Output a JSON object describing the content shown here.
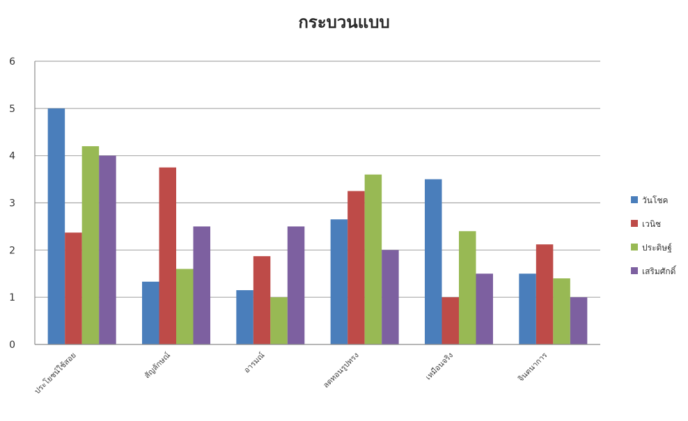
{
  "chart_data": {
    "type": "bar",
    "title": "กระบวนแบบ",
    "xlabel": "",
    "ylabel": "",
    "ylim": [
      0,
      6
    ],
    "yticks": [
      0,
      1,
      2,
      3,
      4,
      5,
      6
    ],
    "grid": true,
    "legend_position": "right",
    "categories": [
      "ประโยชน์ใช้สอย",
      "สัญลักษณ์",
      "อารมณ์",
      "ลดทอนรูปทรง",
      "เหมือนจริง",
      "จินตนาการ"
    ],
    "series": [
      {
        "name": "วันโชค",
        "color": "#4a7ebb",
        "values": [
          5.0,
          1.33,
          1.15,
          2.65,
          3.5,
          1.5
        ]
      },
      {
        "name": "เวนิช",
        "color": "#be4b48",
        "values": [
          2.37,
          3.75,
          1.87,
          3.25,
          1.0,
          2.12
        ]
      },
      {
        "name": "ประดิษฐ์",
        "color": "#98b954",
        "values": [
          4.2,
          1.6,
          1.0,
          3.6,
          2.4,
          1.4
        ]
      },
      {
        "name": "เสริมศักดิ์",
        "color": "#7d60a0",
        "values": [
          4.0,
          2.5,
          2.5,
          2.0,
          1.5,
          1.0
        ]
      }
    ]
  }
}
